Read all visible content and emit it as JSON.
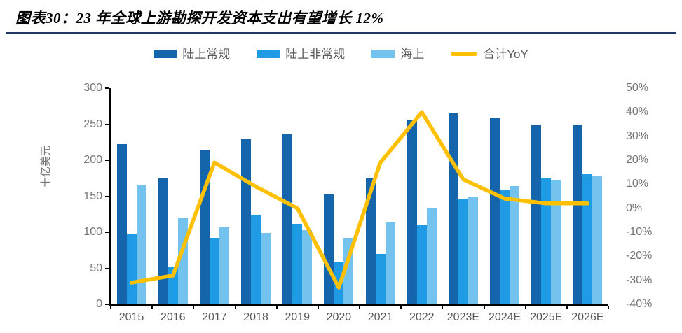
{
  "header": {
    "title": "图表30：23 年全球上游勘探开发资本支出有望增长 12%",
    "rule_color": "#1F3864"
  },
  "chart_data": {
    "type": "bar",
    "title": "23 年全球上游勘探开发资本支出有望增长 12%",
    "categories": [
      "2015",
      "2016",
      "2017",
      "2018",
      "2019",
      "2020",
      "2021",
      "2022",
      "2023E",
      "2024E",
      "2025E",
      "2026E"
    ],
    "series": [
      {
        "name": "陆上常规",
        "type": "bar",
        "axis": "left",
        "color": "#1565AD",
        "values": [
          222,
          176,
          214,
          229,
          237,
          152,
          175,
          256,
          266,
          259,
          249,
          249
        ]
      },
      {
        "name": "陆上非常规",
        "type": "bar",
        "axis": "left",
        "color": "#1E9BE4",
        "values": [
          97,
          51,
          92,
          124,
          112,
          59,
          70,
          110,
          146,
          159,
          175,
          181
        ]
      },
      {
        "name": "海上",
        "type": "bar",
        "axis": "left",
        "color": "#74C3EF",
        "values": [
          166,
          119,
          107,
          99,
          103,
          92,
          114,
          134,
          149,
          164,
          173,
          178
        ]
      },
      {
        "name": "合计YoY",
        "type": "line",
        "axis": "right",
        "color": "#FFC000",
        "values": [
          -31,
          -28,
          19,
          9,
          0,
          -33,
          19,
          40,
          12,
          4,
          2,
          2
        ]
      }
    ],
    "left_axis": {
      "title": "十亿美元",
      "min": 0,
      "max": 300,
      "tick_labels": [
        "300",
        "250",
        "200",
        "150",
        "100",
        "50",
        "0"
      ]
    },
    "right_axis": {
      "title": "",
      "min": -40,
      "max": 50,
      "tick_labels": [
        "50%",
        "40%",
        "30%",
        "20%",
        "10%",
        "0%",
        "-10%",
        "-20%",
        "-30%",
        "-40%"
      ]
    },
    "legend_position": "top",
    "grid": false,
    "axis_color": "#000000",
    "tick_label_color": "#757575",
    "x_label_color": "#595959",
    "legend_text_color": "#595959"
  }
}
